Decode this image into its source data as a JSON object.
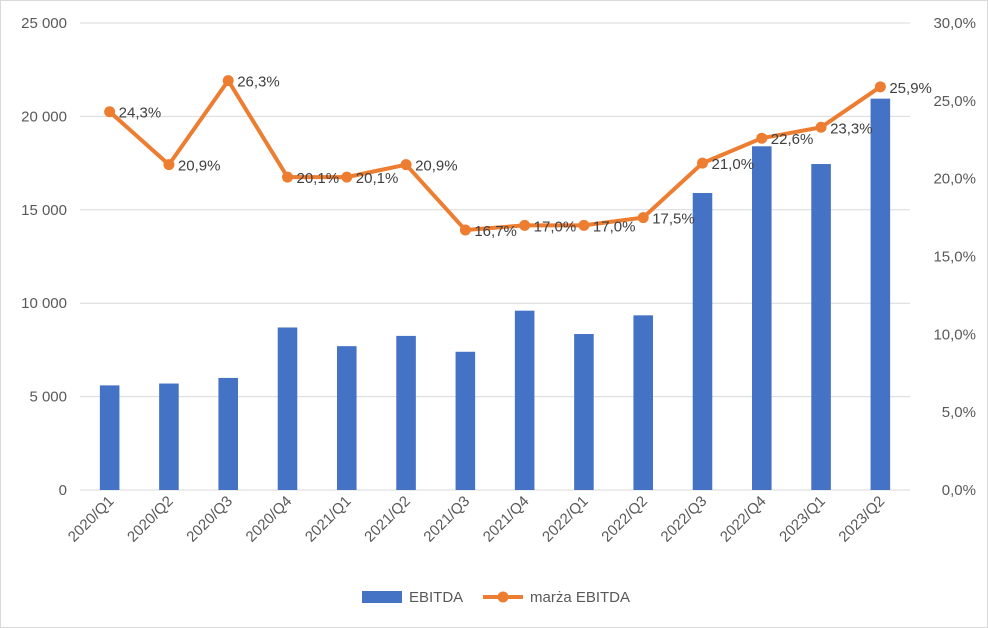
{
  "chart_data": {
    "type": "bar",
    "categories": [
      "2020/Q1",
      "2020/Q2",
      "2020/Q3",
      "2020/Q4",
      "2021/Q1",
      "2021/Q2",
      "2021/Q3",
      "2021/Q4",
      "2022/Q1",
      "2022/Q2",
      "2022/Q3",
      "2022/Q4",
      "2023/Q1",
      "2023/Q2"
    ],
    "series": [
      {
        "name": "EBITDA",
        "type": "bar",
        "axis": "left",
        "color": "#4472C4",
        "values": [
          5600,
          5700,
          6000,
          8700,
          7700,
          8250,
          7400,
          9600,
          8350,
          9350,
          15900,
          18400,
          17450,
          20950
        ]
      },
      {
        "name": "marża EBITDA",
        "type": "line",
        "axis": "right",
        "color": "#ED7D31",
        "values": [
          24.3,
          20.9,
          26.3,
          20.1,
          20.1,
          20.9,
          16.7,
          17.0,
          17.0,
          17.5,
          21.0,
          22.6,
          23.3,
          25.9
        ],
        "labels": [
          "24,3%",
          "20,9%",
          "26,3%",
          "20,1%",
          "20,1%",
          "20,9%",
          "16,7%",
          "17,0%",
          "17,0%",
          "17,5%",
          "21,0%",
          "22,6%",
          "23,3%",
          "25,9%"
        ]
      }
    ],
    "y_left": {
      "min": 0,
      "max": 25000,
      "ticks": [
        0,
        5000,
        10000,
        15000,
        20000,
        25000
      ],
      "tick_labels": [
        "0",
        "5 000",
        "10 000",
        "15 000",
        "20 000",
        "25 000"
      ]
    },
    "y_right": {
      "min": 0,
      "max": 30,
      "ticks": [
        0,
        5,
        10,
        15,
        20,
        25,
        30
      ],
      "tick_labels": [
        "0,0%",
        "5,0%",
        "10,0%",
        "15,0%",
        "20,0%",
        "25,0%",
        "30,0%"
      ]
    },
    "grid": true,
    "legend_position": "bottom",
    "legend": [
      "EBITDA",
      "marża EBITDA"
    ],
    "grid_color": "#d9d9d9"
  }
}
